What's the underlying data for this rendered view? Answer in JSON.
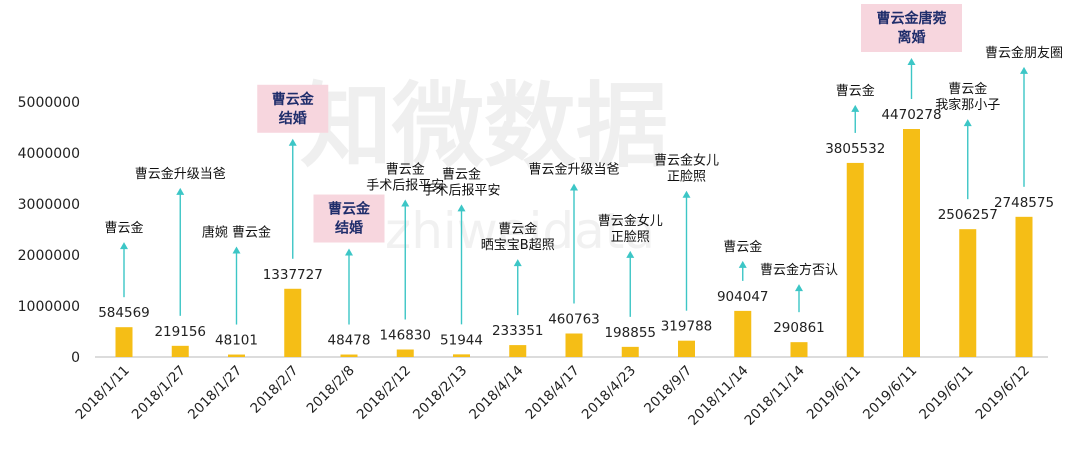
{
  "watermark": {
    "cn": "知微数据",
    "en": "zhiweidata"
  },
  "colors": {
    "bar": "#F5BE16",
    "arrow": "#3CC6C6",
    "axis": "#C8C8C8",
    "highlight_bg": "#F7D6DE",
    "highlight_text": "#1F2D6B"
  },
  "chart_data": {
    "type": "bar",
    "categories": [
      "2018/1/11",
      "2018/1/27",
      "2018/1/27",
      "2018/2/7",
      "2018/2/8",
      "2018/2/12",
      "2018/2/13",
      "2018/4/14",
      "2018/4/17",
      "2018/4/23",
      "2018/9/7",
      "2018/11/14",
      "2018/11/14",
      "2019/6/11",
      "2019/6/11",
      "2019/6/11",
      "2019/6/12"
    ],
    "values": [
      584569,
      219156,
      48101,
      1337727,
      48478,
      146830,
      51944,
      233351,
      460763,
      198855,
      319788,
      904047,
      290861,
      3805532,
      4470278,
      2506257,
      2748575
    ],
    "value_labels": [
      "584569",
      "219156",
      "48101",
      "1337727",
      "48478",
      "146830",
      "51944",
      "233351",
      "460763",
      "198855",
      "319788",
      "904047",
      "290861",
      "3805532",
      "4470278",
      "2506257",
      "2748575"
    ],
    "ylim": [
      0,
      5000000
    ],
    "yticks": [
      "0",
      "1000000",
      "2000000",
      "3000000",
      "4000000",
      "5000000"
    ],
    "grid": false,
    "annotations": [
      {
        "lines": [
          "曹云金"
        ],
        "highlight": false
      },
      {
        "lines": [
          "曹云金升级当爸"
        ],
        "highlight": false
      },
      {
        "lines": [
          "唐婉  曹云金"
        ],
        "highlight": false
      },
      {
        "lines": [
          "曹云金",
          "结婚"
        ],
        "highlight": true
      },
      {
        "lines": [
          "曹云金",
          "结婚"
        ],
        "highlight": true
      },
      {
        "lines": [
          "曹云金",
          "手术后报平安"
        ],
        "highlight": false
      },
      {
        "lines": [
          "曹云金",
          "手术后报平安"
        ],
        "highlight": false
      },
      {
        "lines": [
          "曹云金",
          "晒宝宝B超照"
        ],
        "highlight": false
      },
      {
        "lines": [
          "曹云金升级当爸"
        ],
        "highlight": false
      },
      {
        "lines": [
          "曹云金女儿",
          "正脸照"
        ],
        "highlight": false
      },
      {
        "lines": [
          "曹云金女儿",
          "正脸照"
        ],
        "highlight": false
      },
      {
        "lines": [
          "曹云金"
        ],
        "highlight": false
      },
      {
        "lines": [
          "曹云金方否认"
        ],
        "highlight": false
      },
      {
        "lines": [
          "曹云金"
        ],
        "highlight": false
      },
      {
        "lines": [
          "曹云金唐菀",
          "离婚"
        ],
        "highlight": true
      },
      {
        "lines": [
          "曹云金",
          "我家那小子"
        ],
        "highlight": false
      },
      {
        "lines": [
          "曹云金朋友圈"
        ],
        "highlight": false
      }
    ]
  }
}
